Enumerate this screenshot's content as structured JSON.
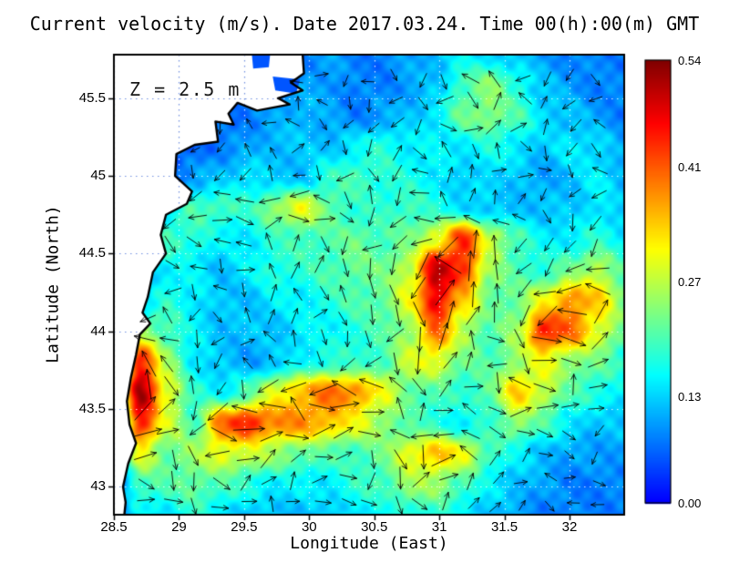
{
  "colors": {
    "land": "#ffffff",
    "coastline": "#000000",
    "arrows": "#000000",
    "grid_sea": "rgba(255,255,255,0.85)",
    "grid_land": "#6f8fdf",
    "frame": "#000000"
  },
  "chart_data": {
    "type": "heatmap",
    "title": "Current velocity (m/s). Date 2017.03.24. Time 00(h):00(m) GMT",
    "annotation": "Z = 2.5 m",
    "xlabel": "Longitude (East)",
    "ylabel": "Latitude (North)",
    "velocity_units": "m/s",
    "xlim": [
      28.5,
      32.42
    ],
    "ylim": [
      42.82,
      45.78
    ],
    "xtick_values": [
      28.5,
      29,
      29.5,
      30,
      30.5,
      31,
      31.5,
      32
    ],
    "xtick_labels": [
      "28.5",
      "29",
      "29.5",
      "30",
      "30.5",
      "31",
      "31.5",
      "32"
    ],
    "ytick_values": [
      43,
      43.5,
      44,
      44.5,
      45,
      45.5
    ],
    "ytick_labels": [
      "43",
      "43.5",
      "44",
      "44.5",
      "45",
      "45.5"
    ],
    "grid": "dotted",
    "colormap": "jet",
    "colorbar": {
      "min": 0,
      "max": 0.54,
      "tick_values": [
        0.54,
        0.41,
        0.27,
        0.13,
        0
      ],
      "tick_labels": [
        "0.54",
        "0.41",
        "0.27",
        "0.13",
        "0.00"
      ]
    },
    "speed_grid": {
      "lon": [
        28.5,
        28.71,
        28.91,
        29.12,
        29.33,
        29.53,
        29.74,
        29.95,
        30.15,
        30.36,
        30.57,
        30.77,
        30.98,
        31.19,
        31.39,
        31.6,
        31.81,
        32.01,
        32.22,
        32.42
      ],
      "lat": [
        45.78,
        45.58,
        45.39,
        45.19,
        44.99,
        44.79,
        44.6,
        44.4,
        44.2,
        44.0,
        43.81,
        43.61,
        43.41,
        43.21,
        43.02,
        42.82
      ],
      "values": [
        [
          0.06,
          0.06,
          0.06,
          0.06,
          0.06,
          0.06,
          0.08,
          0.08,
          0.1,
          0.08,
          0.08,
          0.1,
          0.12,
          0.15,
          0.14,
          0.12,
          0.1,
          0.08,
          0.08,
          0.08
        ],
        [
          0.06,
          0.06,
          0.06,
          0.06,
          0.06,
          0.06,
          0.08,
          0.1,
          0.1,
          0.08,
          0.08,
          0.1,
          0.12,
          0.2,
          0.24,
          0.18,
          0.12,
          0.1,
          0.08,
          0.08
        ],
        [
          0.06,
          0.06,
          0.06,
          0.06,
          0.06,
          0.08,
          0.1,
          0.12,
          0.1,
          0.08,
          0.1,
          0.12,
          0.15,
          0.22,
          0.24,
          0.2,
          0.14,
          0.12,
          0.1,
          0.08
        ],
        [
          0.06,
          0.06,
          0.06,
          0.06,
          0.08,
          0.1,
          0.12,
          0.12,
          0.12,
          0.15,
          0.18,
          0.15,
          0.15,
          0.15,
          0.17,
          0.15,
          0.12,
          0.15,
          0.14,
          0.1
        ],
        [
          0.06,
          0.06,
          0.06,
          0.1,
          0.12,
          0.15,
          0.12,
          0.12,
          0.18,
          0.2,
          0.18,
          0.17,
          0.15,
          0.12,
          0.14,
          0.12,
          0.1,
          0.12,
          0.15,
          0.12
        ],
        [
          0.06,
          0.06,
          0.15,
          0.2,
          0.2,
          0.18,
          0.25,
          0.3,
          0.22,
          0.18,
          0.18,
          0.2,
          0.17,
          0.14,
          0.12,
          0.12,
          0.12,
          0.12,
          0.15,
          0.12
        ],
        [
          0.06,
          0.15,
          0.2,
          0.18,
          0.15,
          0.15,
          0.18,
          0.2,
          0.2,
          0.22,
          0.2,
          0.22,
          0.3,
          0.44,
          0.28,
          0.2,
          0.15,
          0.15,
          0.18,
          0.15
        ],
        [
          0.06,
          0.12,
          0.15,
          0.15,
          0.12,
          0.15,
          0.18,
          0.18,
          0.2,
          0.22,
          0.22,
          0.28,
          0.5,
          0.44,
          0.25,
          0.2,
          0.18,
          0.22,
          0.27,
          0.2
        ],
        [
          0.06,
          0.12,
          0.18,
          0.15,
          0.12,
          0.12,
          0.15,
          0.15,
          0.18,
          0.2,
          0.22,
          0.3,
          0.48,
          0.34,
          0.22,
          0.22,
          0.3,
          0.38,
          0.34,
          0.24
        ],
        [
          0.08,
          0.25,
          0.2,
          0.15,
          0.12,
          0.12,
          0.12,
          0.15,
          0.15,
          0.18,
          0.2,
          0.25,
          0.4,
          0.27,
          0.2,
          0.25,
          0.45,
          0.4,
          0.3,
          0.22
        ],
        [
          0.1,
          0.45,
          0.25,
          0.15,
          0.12,
          0.1,
          0.12,
          0.15,
          0.18,
          0.18,
          0.2,
          0.28,
          0.3,
          0.22,
          0.2,
          0.25,
          0.3,
          0.25,
          0.22,
          0.18
        ],
        [
          0.12,
          0.52,
          0.3,
          0.18,
          0.15,
          0.2,
          0.3,
          0.35,
          0.4,
          0.38,
          0.3,
          0.22,
          0.2,
          0.18,
          0.22,
          0.34,
          0.28,
          0.2,
          0.18,
          0.15
        ],
        [
          0.1,
          0.45,
          0.28,
          0.2,
          0.4,
          0.45,
          0.38,
          0.38,
          0.35,
          0.3,
          0.25,
          0.2,
          0.18,
          0.15,
          0.18,
          0.25,
          0.2,
          0.15,
          0.12,
          0.12
        ],
        [
          0.08,
          0.3,
          0.22,
          0.25,
          0.3,
          0.28,
          0.25,
          0.22,
          0.2,
          0.2,
          0.22,
          0.3,
          0.35,
          0.3,
          0.2,
          0.15,
          0.12,
          0.1,
          0.1,
          0.1
        ],
        [
          0.06,
          0.2,
          0.2,
          0.22,
          0.2,
          0.18,
          0.15,
          0.15,
          0.15,
          0.18,
          0.2,
          0.25,
          0.25,
          0.2,
          0.15,
          0.12,
          0.1,
          0.08,
          0.08,
          0.08
        ],
        [
          0.06,
          0.15,
          0.15,
          0.18,
          0.15,
          0.12,
          0.12,
          0.12,
          0.12,
          0.15,
          0.15,
          0.18,
          0.18,
          0.15,
          0.12,
          0.1,
          0.08,
          0.08,
          0.08,
          0.08
        ]
      ]
    },
    "coastline": [
      [
        29.95,
        45.78
      ],
      [
        29.96,
        45.66
      ],
      [
        29.86,
        45.6
      ],
      [
        29.95,
        45.55
      ],
      [
        29.76,
        45.5
      ],
      [
        29.85,
        45.46
      ],
      [
        29.6,
        45.42
      ],
      [
        29.45,
        45.47
      ],
      [
        29.38,
        45.4
      ],
      [
        29.42,
        45.33
      ],
      [
        29.28,
        45.35
      ],
      [
        29.3,
        45.22
      ],
      [
        29.12,
        45.2
      ],
      [
        28.98,
        45.14
      ],
      [
        28.97,
        45.0
      ],
      [
        29.1,
        44.9
      ],
      [
        29.06,
        44.82
      ],
      [
        28.9,
        44.75
      ],
      [
        28.86,
        44.62
      ],
      [
        28.9,
        44.5
      ],
      [
        28.8,
        44.38
      ],
      [
        28.76,
        44.22
      ],
      [
        28.72,
        44.12
      ],
      [
        28.78,
        44.05
      ],
      [
        28.7,
        43.98
      ],
      [
        28.67,
        43.85
      ],
      [
        28.63,
        43.7
      ],
      [
        28.6,
        43.55
      ],
      [
        28.62,
        43.4
      ],
      [
        28.67,
        43.28
      ],
      [
        28.61,
        43.15
      ],
      [
        28.57,
        43.0
      ],
      [
        28.59,
        42.9
      ],
      [
        28.58,
        42.82
      ]
    ],
    "lakes": [
      [
        [
          29.56,
          45.78
        ],
        [
          29.7,
          45.78
        ],
        [
          29.69,
          45.7
        ],
        [
          29.57,
          45.69
        ]
      ],
      [
        [
          29.72,
          45.64
        ],
        [
          29.93,
          45.62
        ],
        [
          29.9,
          45.53
        ],
        [
          29.74,
          45.55
        ]
      ]
    ],
    "arrows": {
      "style": "quiver",
      "spacing_lon": 0.193,
      "spacing_lat": 0.152
    }
  }
}
